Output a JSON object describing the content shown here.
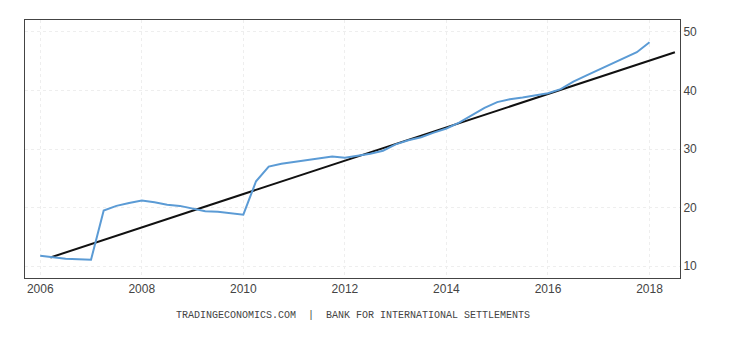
{
  "chart_data": {
    "type": "line",
    "annotation": "TRADINGECONOMICS.COM  |  BANK FOR INTERNATIONAL SETTLEMENTS",
    "series": [
      {
        "color": "#111111",
        "x": [
          2006.2,
          2018.5
        ],
        "values": [
          11.5,
          46.5
        ]
      },
      {
        "color": "#5b9bd5",
        "x": [
          2006.0,
          2006.25,
          2006.5,
          2006.75,
          2007.0,
          2007.25,
          2007.5,
          2007.75,
          2008.0,
          2008.25,
          2008.5,
          2008.75,
          2009.0,
          2009.25,
          2009.5,
          2009.75,
          2010.0,
          2010.25,
          2010.5,
          2010.75,
          2011.0,
          2011.25,
          2011.5,
          2011.75,
          2012.0,
          2012.25,
          2012.5,
          2012.75,
          2013.0,
          2013.25,
          2013.5,
          2013.75,
          2014.0,
          2014.25,
          2014.5,
          2014.75,
          2015.0,
          2015.25,
          2015.5,
          2015.75,
          2016.0,
          2016.25,
          2016.5,
          2016.75,
          2017.0,
          2017.25,
          2017.5,
          2017.75,
          2018.0
        ],
        "values": [
          11.8,
          11.5,
          11.3,
          11.2,
          11.1,
          19.5,
          20.3,
          20.8,
          21.2,
          20.9,
          20.5,
          20.3,
          19.8,
          19.4,
          19.3,
          19.0,
          18.8,
          24.5,
          27.0,
          27.5,
          27.8,
          28.0,
          28.3,
          28.7,
          28.5,
          28.8,
          29.2,
          29.7,
          30.8,
          31.5,
          32.0,
          32.8,
          33.5,
          34.5,
          35.8,
          37.0,
          38.0,
          38.5,
          38.8,
          39.2,
          39.5,
          40.2,
          41.5,
          42.5,
          43.5,
          44.5,
          45.5,
          46.5,
          48.2
        ]
      }
    ],
    "xlim": [
      2005.7,
      2018.6
    ],
    "xticks": [
      2006,
      2008,
      2010,
      2012,
      2014,
      2016,
      2018
    ],
    "ylim": [
      8,
      52
    ],
    "yticks": [
      10,
      20,
      30,
      40,
      50
    ],
    "grid": true
  }
}
